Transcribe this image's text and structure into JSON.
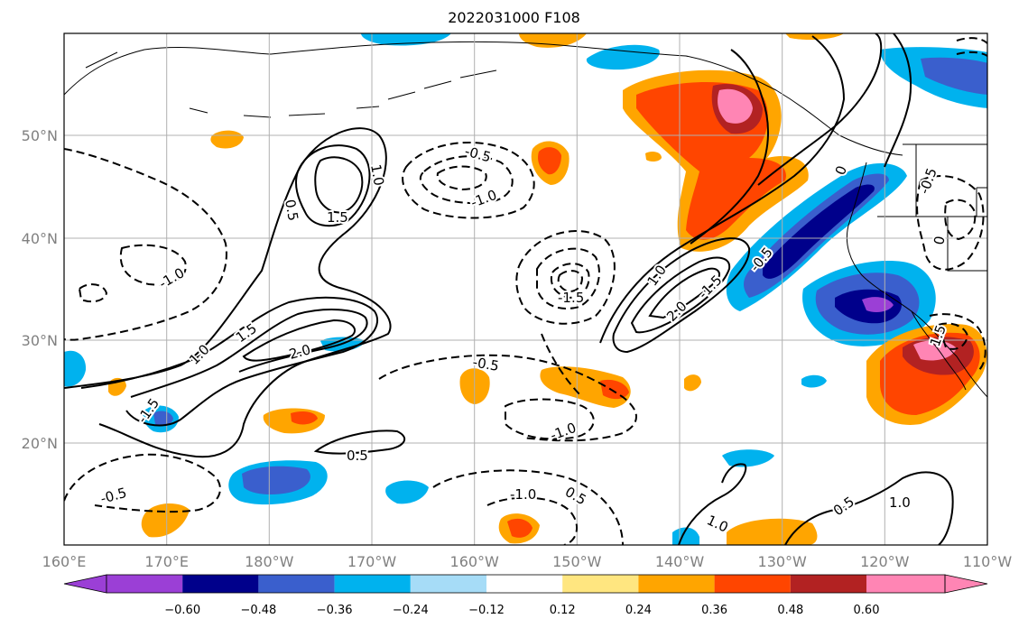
{
  "title": "2022031000 F108",
  "map": {
    "lon_ticks": [
      "160°E",
      "170°E",
      "180°W",
      "170°W",
      "160°W",
      "150°W",
      "140°W",
      "130°W",
      "120°W",
      "110°W"
    ],
    "lat_ticks": [
      "50°N",
      "40°N",
      "30°N",
      "20°N"
    ],
    "contour_labels": [
      "0.5",
      "1.0",
      "1.5",
      "-0.5",
      "-1.0",
      "-1.5",
      "1.0",
      "1.5",
      "2.0",
      "-0.5",
      "-1.0",
      "0.5",
      "-1.0",
      "-0.5",
      "2.0",
      "-1.5",
      "-0.5",
      "0.5",
      "1.0",
      "1.0",
      "0.5",
      "-0.5",
      "0",
      "-1.5",
      "1.0",
      "1.5",
      "-1.0",
      "0"
    ]
  },
  "colorbar": {
    "ticks": [
      "−0.60",
      "−0.48",
      "−0.36",
      "−0.24",
      "−0.12",
      "0.12",
      "0.24",
      "0.36",
      "0.48",
      "0.60"
    ],
    "colors": [
      "#9b3fd6",
      "#00008b",
      "#3a5fcd",
      "#00b2ee",
      "#a6dcf7",
      "#ffffff",
      "#ffe680",
      "#ffa500",
      "#ff4500",
      "#b22222",
      "#ff85b4"
    ]
  }
}
